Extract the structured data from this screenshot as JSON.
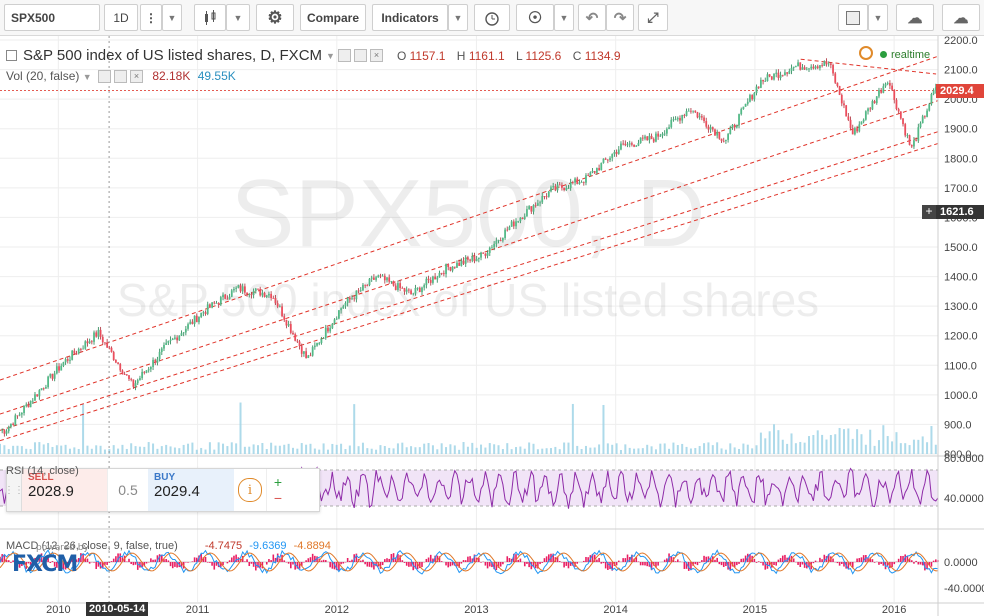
{
  "toolbar": {
    "symbol": "SPX500",
    "interval": "1D",
    "compare_label": "Compare",
    "indicators_label": "Indicators"
  },
  "legend": {
    "title": "S&P 500 index of US listed shares, D, FXCM",
    "o_label": "O",
    "o": "1157.1",
    "h_label": "H",
    "h": "1161.1",
    "l_label": "L",
    "l": "1125.6",
    "c_label": "C",
    "c": "1134.9",
    "vol_label": "Vol (20, false)",
    "vol_value1": "82.18K",
    "vol_value2": "49.55K",
    "realtime": "realtime"
  },
  "watermark": {
    "symbol": "SPX500, D",
    "name": "S&P 500 index of US listed shares"
  },
  "price_tags": {
    "last": "2029.4",
    "cursor": "1621.6"
  },
  "trade_panel": {
    "sell_label": "SELL",
    "sell": "2028.9",
    "spread": "0.5",
    "buy_label": "BUY",
    "buy": "2029.4",
    "plus": "+",
    "minus": "−"
  },
  "rsi_legend": "RSI (14, close)",
  "macd_legend": {
    "label": "MACD (12, 26, close, 9, false, true)",
    "v1": "-4.7475",
    "v2": "-9.6369",
    "v3": "-4.8894"
  },
  "brand": {
    "logo": "FXCM",
    "powered": "powered by"
  },
  "date_cursor": "2010-05-14",
  "colors": {
    "up": "#53b987",
    "down": "#eb4d5c",
    "rsi": "#8e2ba8",
    "macd": "#2196f3",
    "signal": "#e0782a",
    "hist": "#e91e63",
    "channel": "#e0342a",
    "volume": "#9fd3e6"
  },
  "chart_data": {
    "type": "line",
    "symbol": "SPX500",
    "x": [
      "2009-08",
      "2010-01",
      "2010-04",
      "2010-07",
      "2010-10",
      "2011-01",
      "2011-04",
      "2011-07",
      "2011-10",
      "2012-01",
      "2012-04",
      "2012-07",
      "2012-10",
      "2013-01",
      "2013-04",
      "2013-07",
      "2013-10",
      "2014-01",
      "2014-04",
      "2014-07",
      "2014-10",
      "2015-01",
      "2015-04",
      "2015-07",
      "2015-09",
      "2015-12",
      "2016-02",
      "2016-04"
    ],
    "y": [
      880,
      1110,
      1210,
      1030,
      1170,
      1280,
      1360,
      1340,
      1120,
      1300,
      1400,
      1340,
      1430,
      1470,
      1590,
      1690,
      1730,
      1840,
      1870,
      1970,
      1860,
      2060,
      2110,
      2120,
      1880,
      2070,
      1830,
      2029
    ],
    "ylim": [
      800,
      2200
    ],
    "yticks": [
      800,
      900,
      1000,
      1100,
      1200,
      1300,
      1400,
      1500,
      1600,
      1700,
      1800,
      1900,
      2000,
      2100,
      2200
    ],
    "xticks": [
      "2010",
      "2011",
      "2012",
      "2013",
      "2014",
      "2015",
      "2016"
    ],
    "rsi": {
      "levels": [
        40,
        80
      ],
      "ytick_labels": [
        "80.0000",
        "40.0000"
      ]
    },
    "macd": {
      "ytick_labels": [
        "0.0000",
        "-40.0000"
      ]
    },
    "grid": true
  }
}
